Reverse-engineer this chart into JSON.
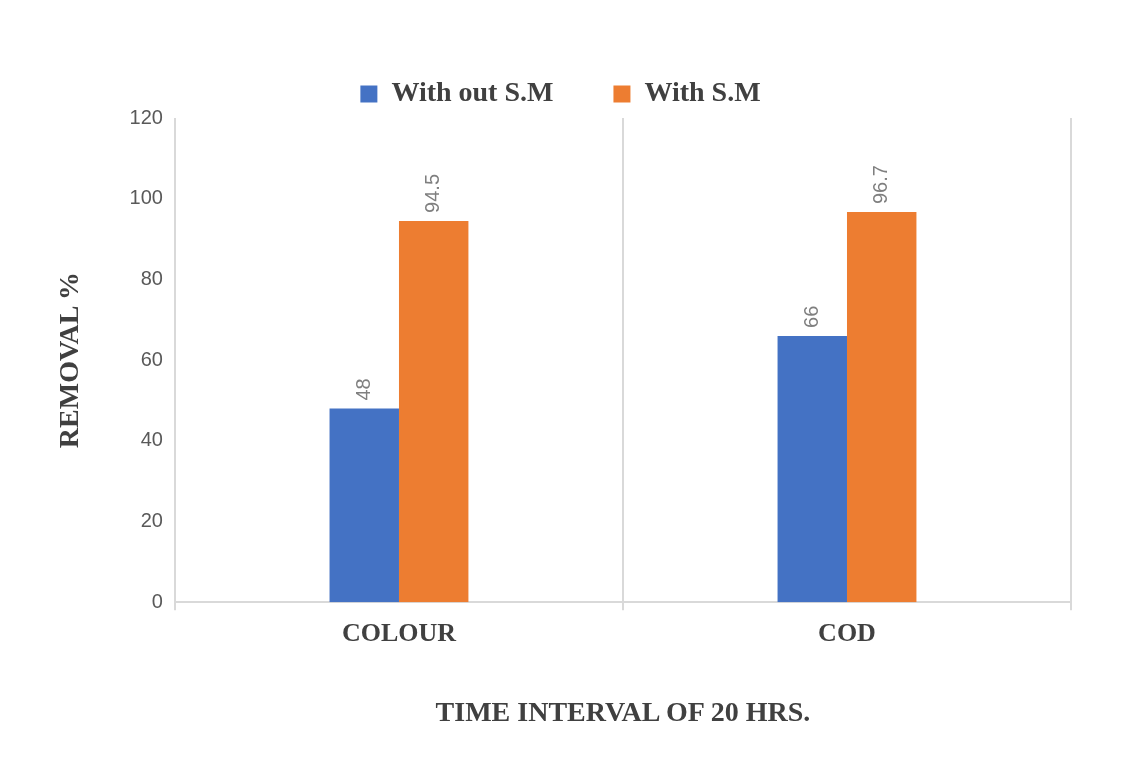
{
  "chart_data": {
    "type": "bar",
    "xlabel": "TIME INTERVAL OF 20 HRS.",
    "ylabel": "REMOVAL %",
    "categories": [
      "COLOUR",
      "COD"
    ],
    "series": [
      {
        "name": "With out S.M",
        "color": "#4472c4",
        "values": [
          48,
          66
        ]
      },
      {
        "name": "With S.M",
        "color": "#ed7d31",
        "values": [
          94.5,
          96.7
        ]
      }
    ],
    "ylim": [
      0,
      120
    ],
    "yticks": [
      0,
      20,
      40,
      60,
      80,
      100,
      120
    ],
    "grid": "x",
    "legend": "top",
    "data_labels": true
  }
}
